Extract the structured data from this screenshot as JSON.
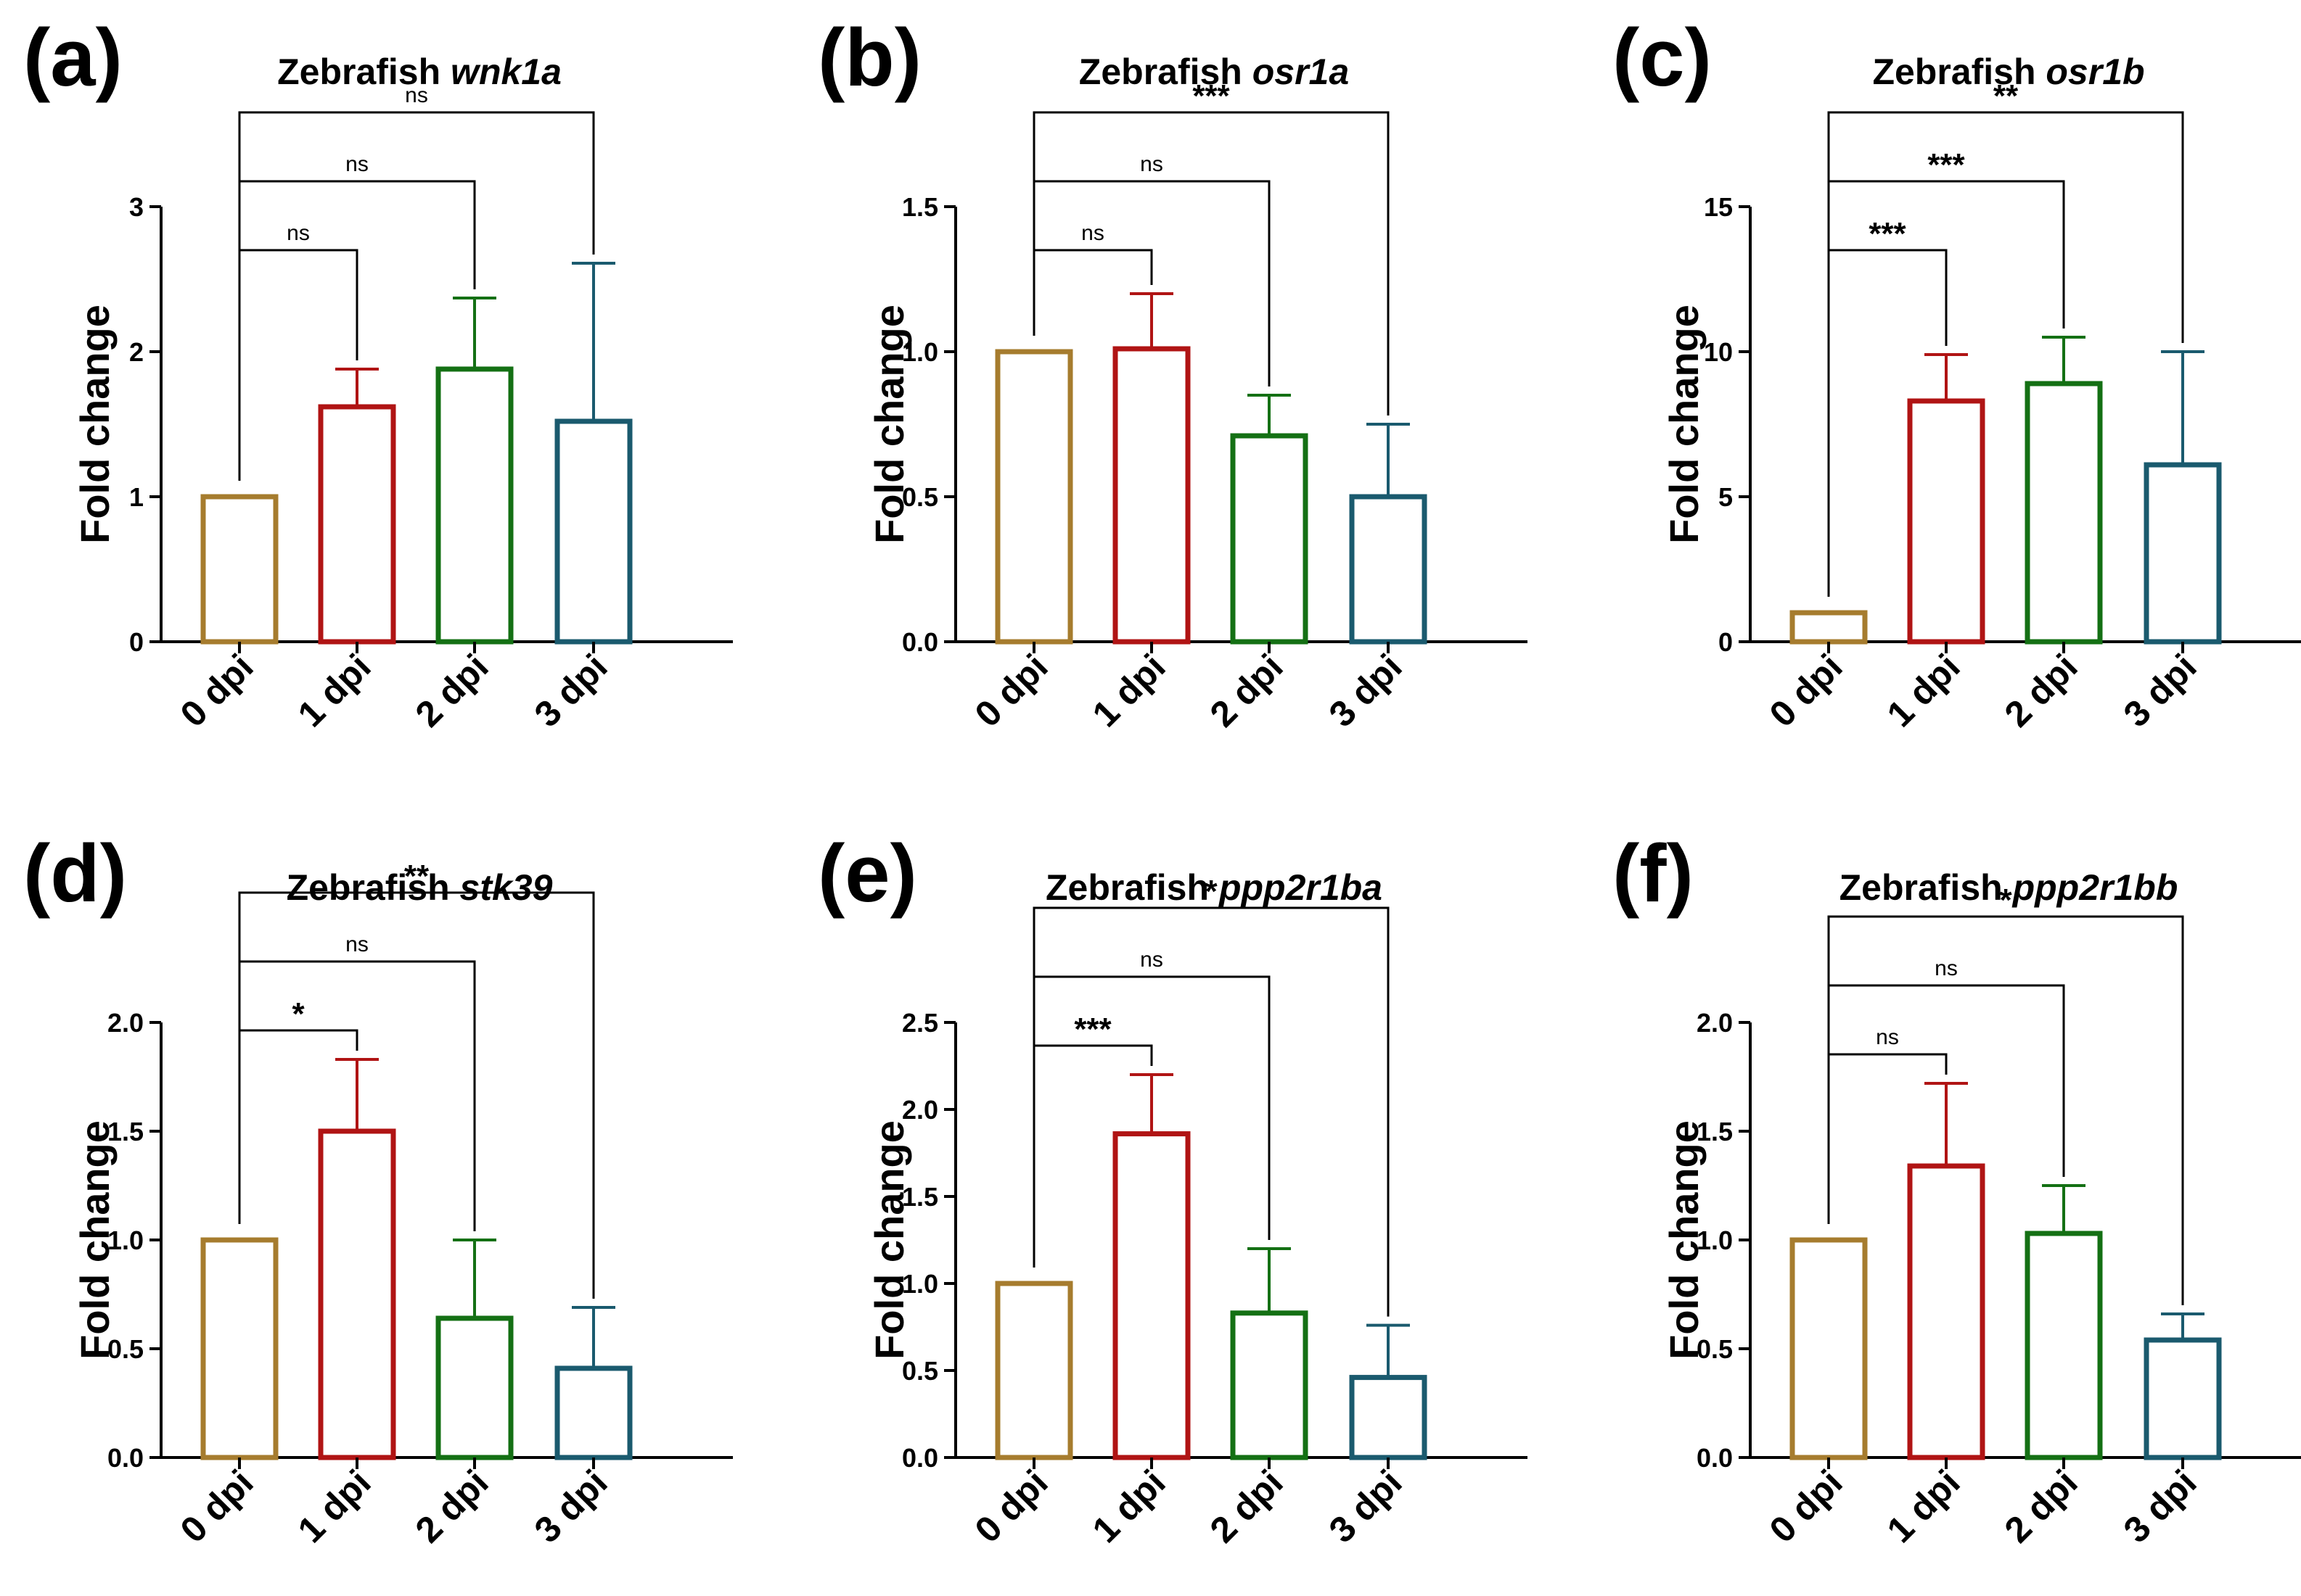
{
  "colors": {
    "0 dpi": "#A67C2E",
    "1 dpi": "#B01414",
    "2 dpi": "#147014",
    "3 dpi": "#1A5A6E",
    "axis": "#000000"
  },
  "chart_data": [
    {
      "type": "bar",
      "panel_label": "(a)",
      "title_prefix": "Zebrafish ",
      "title_gene": "wnk1a",
      "ylabel": "Fold change",
      "xlabel": "",
      "categories": [
        "0 dpi",
        "1 dpi",
        "2 dpi",
        "3 dpi"
      ],
      "values": [
        1.0,
        1.62,
        1.88,
        1.52
      ],
      "errors": [
        0.0,
        0.26,
        0.49,
        1.09
      ],
      "ylim": [
        0,
        3
      ],
      "yticks": [
        0,
        1,
        2,
        3
      ],
      "ytick_labels": [
        "0",
        "1",
        "2",
        "3"
      ],
      "grid": false,
      "comparisons": [
        {
          "from": 0,
          "to": 1,
          "label": "ns"
        },
        {
          "from": 0,
          "to": 2,
          "label": "ns"
        },
        {
          "from": 0,
          "to": 3,
          "label": "ns"
        }
      ]
    },
    {
      "type": "bar",
      "panel_label": "(b)",
      "title_prefix": "Zebrafish ",
      "title_gene": "osr1a",
      "ylabel": "Fold change",
      "xlabel": "",
      "categories": [
        "0 dpi",
        "1 dpi",
        "2 dpi",
        "3 dpi"
      ],
      "values": [
        1.0,
        1.01,
        0.71,
        0.5
      ],
      "errors": [
        0.0,
        0.19,
        0.14,
        0.25
      ],
      "ylim": [
        0,
        1.5
      ],
      "yticks": [
        0,
        0.5,
        1.0,
        1.5
      ],
      "ytick_labels": [
        "0.0",
        "0.5",
        "1.0",
        "1.5"
      ],
      "grid": false,
      "comparisons": [
        {
          "from": 0,
          "to": 1,
          "label": "ns"
        },
        {
          "from": 0,
          "to": 2,
          "label": "ns"
        },
        {
          "from": 0,
          "to": 3,
          "label": "***"
        }
      ]
    },
    {
      "type": "bar",
      "panel_label": "(c)",
      "title_prefix": "Zebrafish ",
      "title_gene": "osr1b",
      "ylabel": "Fold change",
      "xlabel": "",
      "categories": [
        "0 dpi",
        "1 dpi",
        "2 dpi",
        "3 dpi"
      ],
      "values": [
        1.0,
        8.3,
        8.9,
        6.1
      ],
      "errors": [
        0.0,
        1.6,
        1.6,
        3.9
      ],
      "ylim": [
        0,
        15
      ],
      "yticks": [
        0,
        5,
        10,
        15
      ],
      "ytick_labels": [
        "0",
        "5",
        "10",
        "15"
      ],
      "grid": false,
      "comparisons": [
        {
          "from": 0,
          "to": 1,
          "label": "***"
        },
        {
          "from": 0,
          "to": 2,
          "label": "***"
        },
        {
          "from": 0,
          "to": 3,
          "label": "**"
        }
      ]
    },
    {
      "type": "bar",
      "panel_label": "(d)",
      "title_prefix": "Zebrafish ",
      "title_gene": "stk39",
      "ylabel": "Fold change",
      "xlabel": "",
      "categories": [
        "0 dpi",
        "1 dpi",
        "2 dpi",
        "3 dpi"
      ],
      "values": [
        1.0,
        1.5,
        0.64,
        0.41
      ],
      "errors": [
        0.0,
        0.33,
        0.36,
        0.28
      ],
      "ylim": [
        0,
        2.0
      ],
      "yticks": [
        0,
        0.5,
        1.0,
        1.5,
        2.0
      ],
      "ytick_labels": [
        "0.0",
        "0.5",
        "1.0",
        "1.5",
        "2.0"
      ],
      "grid": false,
      "comparisons": [
        {
          "from": 0,
          "to": 1,
          "label": "*"
        },
        {
          "from": 0,
          "to": 2,
          "label": "ns"
        },
        {
          "from": 0,
          "to": 3,
          "label": "**"
        }
      ]
    },
    {
      "type": "bar",
      "panel_label": "(e)",
      "title_prefix": "Zebrafish ",
      "title_gene": "ppp2r1ba",
      "ylabel": "Fold change",
      "xlabel": "",
      "categories": [
        "0 dpi",
        "1 dpi",
        "2 dpi",
        "3 dpi"
      ],
      "values": [
        1.0,
        1.86,
        0.83,
        0.46
      ],
      "errors": [
        0.0,
        0.34,
        0.37,
        0.3
      ],
      "ylim": [
        0,
        2.5
      ],
      "yticks": [
        0,
        0.5,
        1.0,
        1.5,
        2.0,
        2.5
      ],
      "ytick_labels": [
        "0.0",
        "0.5",
        "1.0",
        "1.5",
        "2.0",
        "2.5"
      ],
      "grid": false,
      "comparisons": [
        {
          "from": 0,
          "to": 1,
          "label": "***"
        },
        {
          "from": 0,
          "to": 2,
          "label": "ns"
        },
        {
          "from": 0,
          "to": 3,
          "label": "*"
        }
      ]
    },
    {
      "type": "bar",
      "panel_label": "(f)",
      "title_prefix": "Zebrafish ",
      "title_gene": "ppp2r1bb",
      "ylabel": "Fold change",
      "xlabel": "",
      "categories": [
        "0 dpi",
        "1 dpi",
        "2 dpi",
        "3 dpi"
      ],
      "values": [
        1.0,
        1.34,
        1.03,
        0.54
      ],
      "errors": [
        0.0,
        0.38,
        0.22,
        0.12
      ],
      "ylim": [
        0,
        2.0
      ],
      "yticks": [
        0,
        0.5,
        1.0,
        1.5,
        2.0
      ],
      "ytick_labels": [
        "0.0",
        "0.5",
        "1.0",
        "1.5",
        "2.0"
      ],
      "grid": false,
      "comparisons": [
        {
          "from": 0,
          "to": 1,
          "label": "ns"
        },
        {
          "from": 0,
          "to": 2,
          "label": "ns"
        },
        {
          "from": 0,
          "to": 3,
          "label": "*"
        }
      ]
    }
  ]
}
